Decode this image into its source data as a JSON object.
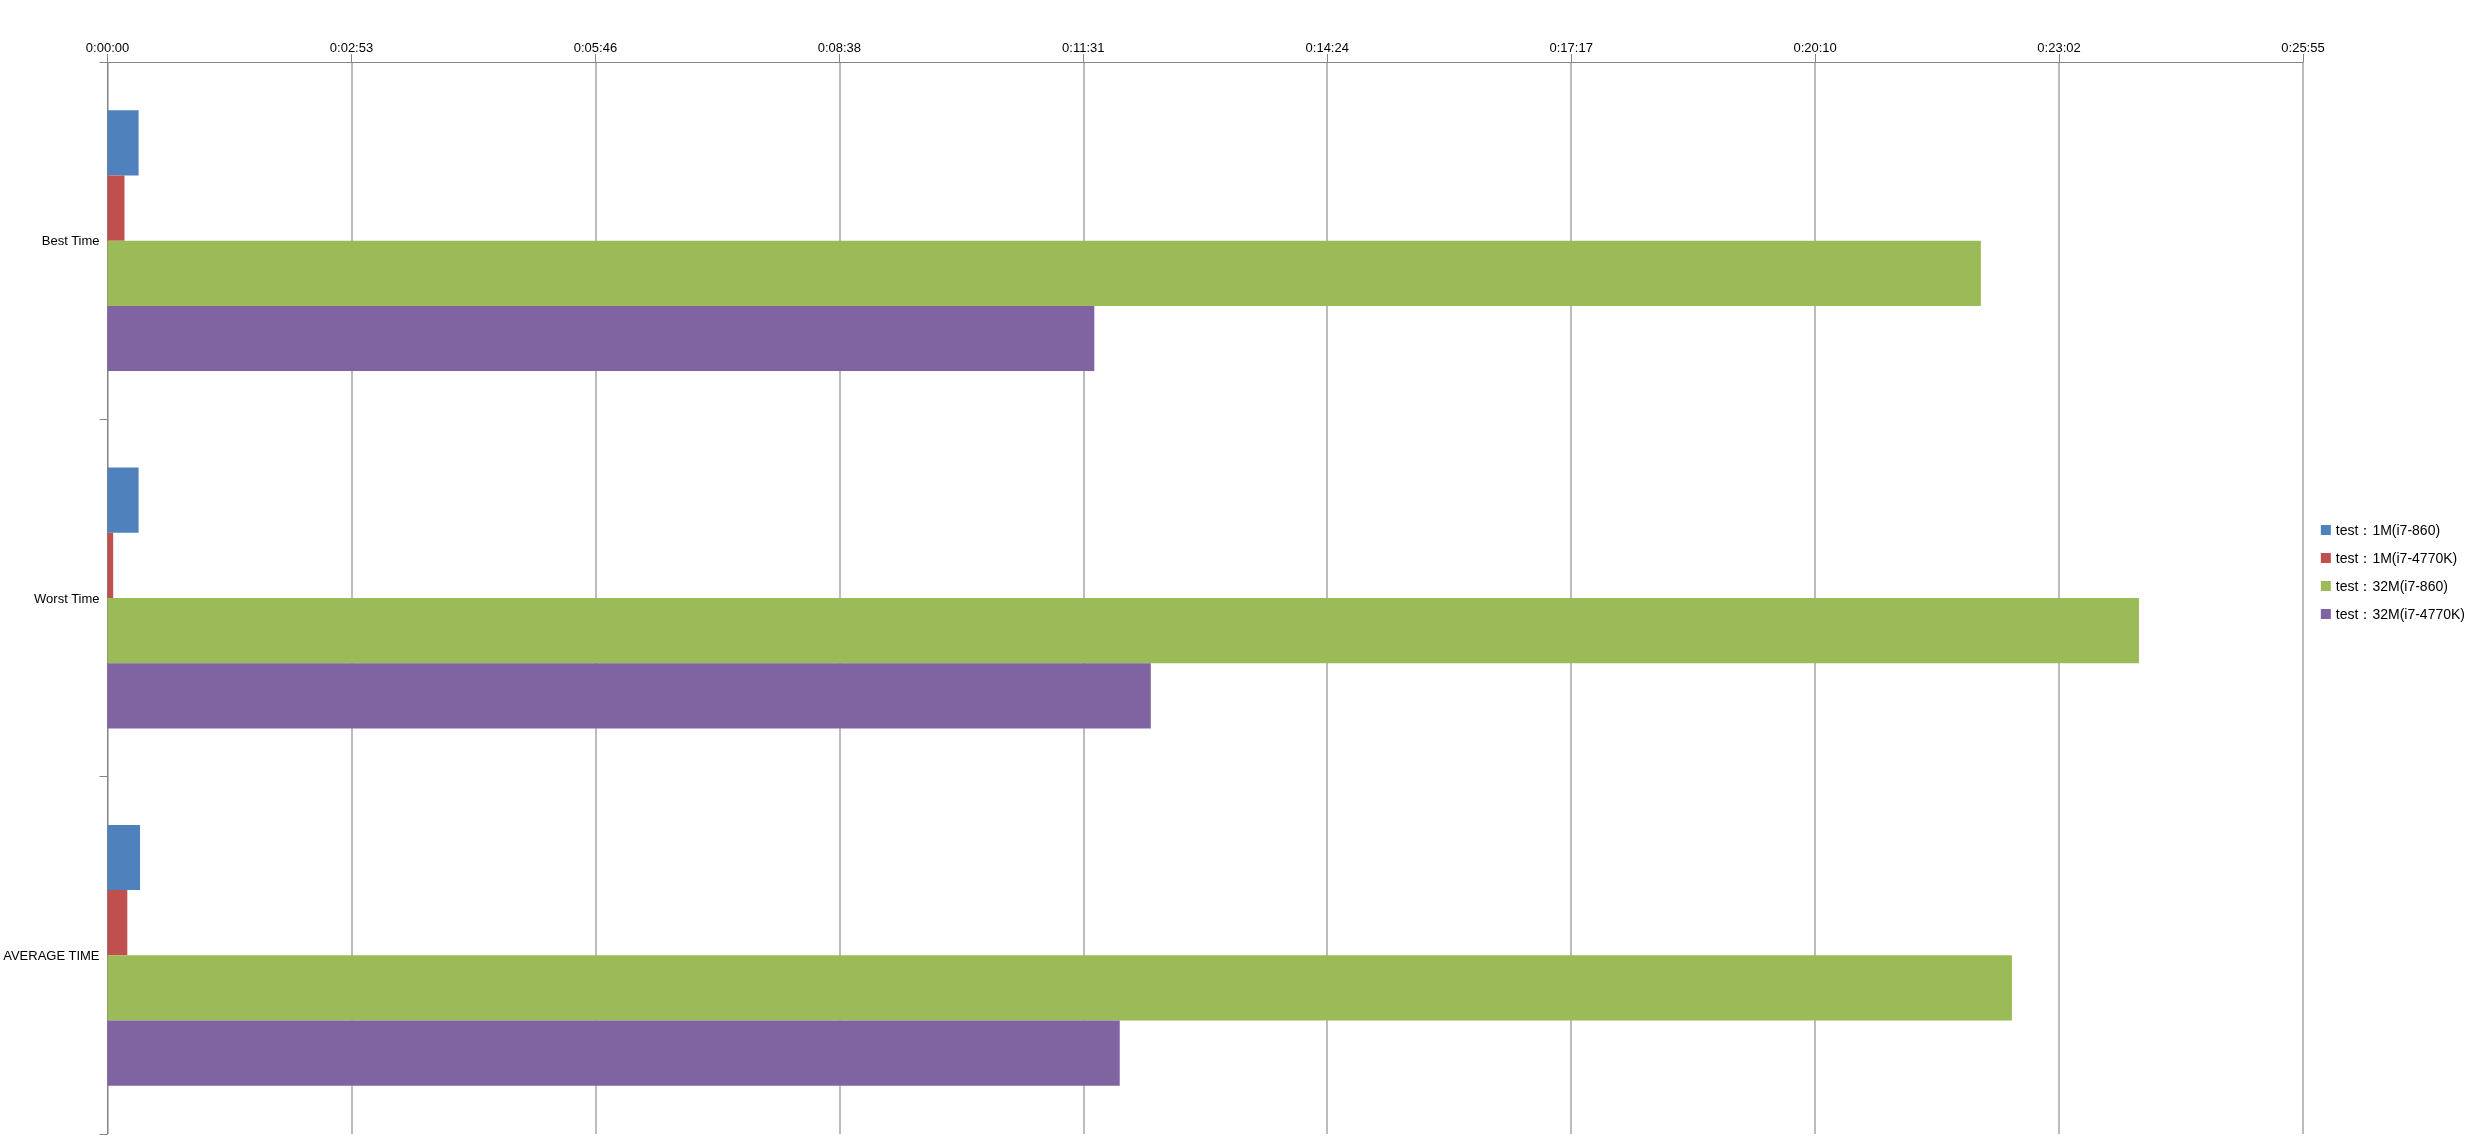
{
  "chart_data": {
    "type": "bar",
    "orientation": "horizontal",
    "categories": [
      "Best Time",
      "Worst Time",
      "AVERAGE TIME"
    ],
    "series": [
      {
        "name": "test：1M(i7-860)",
        "color": "#4f81bd",
        "values": [
          22,
          22,
          23
        ]
      },
      {
        "name": "test：1M(i7-4770K)",
        "color": "#c0504d",
        "values": [
          12,
          4,
          14
        ]
      },
      {
        "name": "test：32M(i7-860)",
        "color": "#9bbb59",
        "values": [
          1327,
          1439,
          1349
        ]
      },
      {
        "name": "test：32M(i7-4770K)",
        "color": "#8064a2",
        "values": [
          699,
          739,
          717
        ]
      }
    ],
    "xlim": [
      0,
      1555.2
    ],
    "xticks": [
      {
        "value": 0,
        "label": "0:00:00"
      },
      {
        "value": 172.8,
        "label": "0:02:53"
      },
      {
        "value": 345.6,
        "label": "0:05:46"
      },
      {
        "value": 518.4,
        "label": "0:08:38"
      },
      {
        "value": 691.2,
        "label": "0:11:31"
      },
      {
        "value": 864,
        "label": "0:14:24"
      },
      {
        "value": 1036.8,
        "label": "0:17:17"
      },
      {
        "value": 1209.6,
        "label": "0:20:10"
      },
      {
        "value": 1382.4,
        "label": "0:23:02"
      },
      {
        "value": 1555.2,
        "label": "0:25:55"
      }
    ],
    "grid": "x",
    "legend": "right"
  }
}
